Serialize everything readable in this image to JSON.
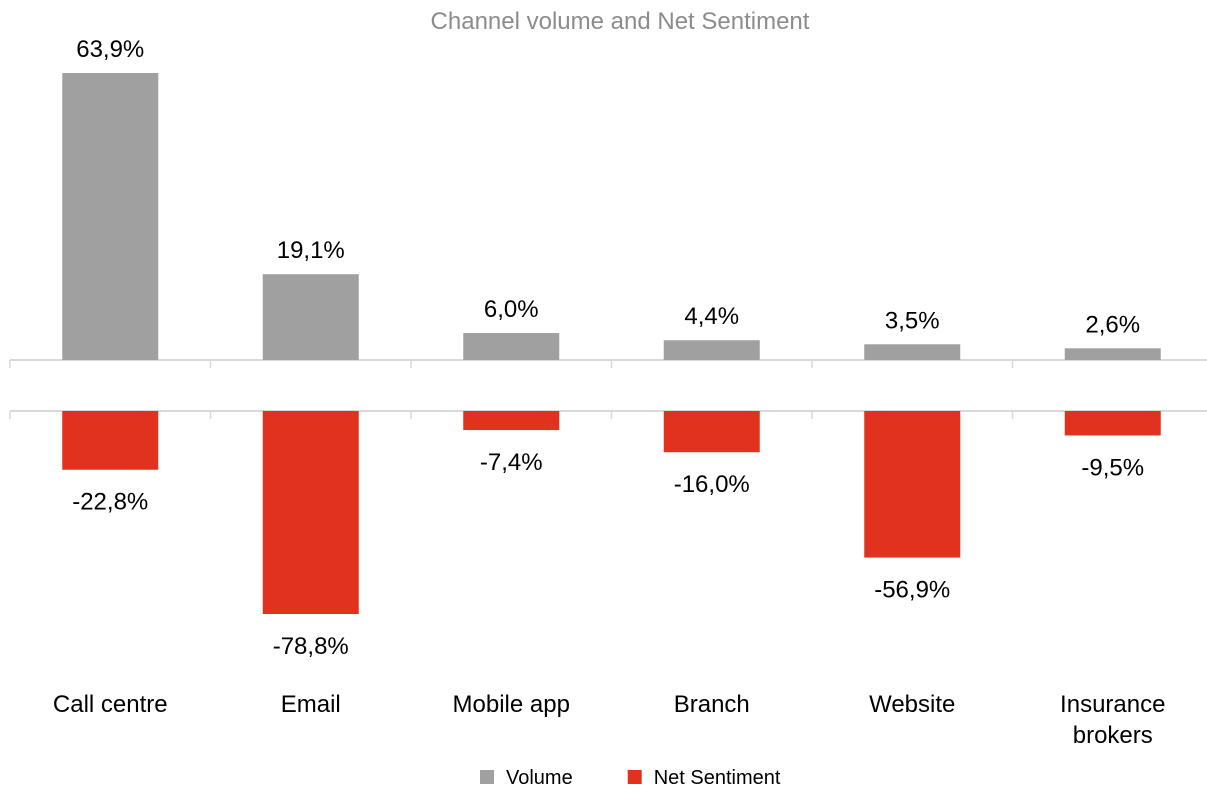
{
  "chart_data": {
    "type": "bar",
    "title": "Channel volume and Net Sentiment",
    "categories": [
      "Call centre",
      "Email",
      "Mobile app",
      "Branch",
      "Website",
      "Insurance brokers"
    ],
    "series": [
      {
        "name": "Volume",
        "color": "#a0a0a0",
        "values": [
          63.9,
          19.1,
          6.0,
          4.4,
          3.5,
          2.6
        ],
        "value_labels": [
          "63,9%",
          "19,1%",
          "6,0%",
          "4,4%",
          "3,5%",
          "2,6%"
        ]
      },
      {
        "name": "Net Sentiment",
        "color": "#e0321f",
        "values": [
          -22.8,
          -78.8,
          -7.4,
          -16.0,
          -56.9,
          -9.5
        ],
        "value_labels": [
          "-22,8%",
          "-78,8%",
          "-7,4%",
          "-16,0%",
          "-56,9%",
          "-9,5%"
        ]
      }
    ],
    "legend": "bottom"
  }
}
